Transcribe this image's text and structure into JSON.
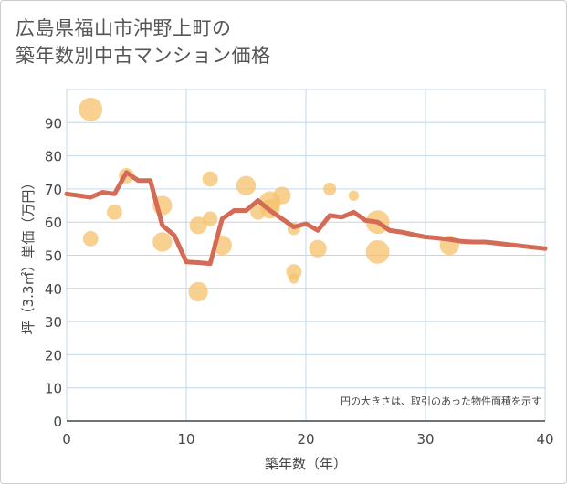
{
  "title_line1": "広島県福山市沖野上町の",
  "title_line2": "築年数別中古マンション価格",
  "chart_data": {
    "type": "scatter",
    "title": "広島県福山市沖野上町の築年数別中古マンション価格",
    "xlabel": "築年数（年）",
    "ylabel": "坪（3.3㎡）単価（万円）",
    "xlim": [
      0,
      40
    ],
    "ylim": [
      0,
      100
    ],
    "x_ticks": [
      0,
      10,
      20,
      30,
      40
    ],
    "y_ticks": [
      0,
      10,
      20,
      30,
      40,
      50,
      60,
      70,
      80,
      90
    ],
    "grid": true,
    "note": "円の大きさは、取引のあった物件面積を示す",
    "bubbles": [
      {
        "x": 2,
        "y": 94,
        "size": 3
      },
      {
        "x": 2,
        "y": 55,
        "size": 1.2
      },
      {
        "x": 4,
        "y": 63,
        "size": 1.2
      },
      {
        "x": 5,
        "y": 74,
        "size": 1.2
      },
      {
        "x": 8,
        "y": 65,
        "size": 2
      },
      {
        "x": 8,
        "y": 54,
        "size": 2
      },
      {
        "x": 11,
        "y": 59,
        "size": 1.6
      },
      {
        "x": 11,
        "y": 39,
        "size": 2
      },
      {
        "x": 12,
        "y": 73,
        "size": 1.2
      },
      {
        "x": 12,
        "y": 61,
        "size": 1.1
      },
      {
        "x": 13,
        "y": 53,
        "size": 2
      },
      {
        "x": 15,
        "y": 71,
        "size": 2
      },
      {
        "x": 16,
        "y": 63,
        "size": 1.2
      },
      {
        "x": 17,
        "y": 66,
        "size": 2.5
      },
      {
        "x": 17,
        "y": 64,
        "size": 2
      },
      {
        "x": 18,
        "y": 68,
        "size": 1.6
      },
      {
        "x": 19,
        "y": 58,
        "size": 0.8
      },
      {
        "x": 19,
        "y": 45,
        "size": 1.2
      },
      {
        "x": 19,
        "y": 43,
        "size": 0.5
      },
      {
        "x": 21,
        "y": 52,
        "size": 1.6
      },
      {
        "x": 22,
        "y": 70,
        "size": 0.8
      },
      {
        "x": 24,
        "y": 68,
        "size": 0.5
      },
      {
        "x": 26,
        "y": 60,
        "size": 3
      },
      {
        "x": 26,
        "y": 51,
        "size": 3
      },
      {
        "x": 32,
        "y": 53,
        "size": 2
      }
    ],
    "trend_line": {
      "x": [
        0,
        2,
        3,
        4,
        5,
        6,
        7,
        8,
        9,
        10,
        11,
        12,
        13,
        14,
        15,
        16,
        17,
        18,
        19,
        20,
        21,
        22,
        23,
        24,
        25,
        26,
        27,
        28,
        29,
        30,
        31,
        32,
        33,
        34,
        35,
        36,
        37,
        38,
        39,
        40
      ],
      "y": [
        68.5,
        67.5,
        69,
        68.5,
        75,
        72.5,
        72.5,
        59,
        56,
        48,
        47.8,
        47.5,
        61,
        63.5,
        63.5,
        66.5,
        63.5,
        61,
        58.5,
        59.5,
        57.5,
        62,
        61.5,
        63,
        60.5,
        60,
        57.5,
        57,
        56.2,
        55.5,
        55.2,
        54.8,
        54.2,
        54,
        54,
        53.6,
        53.2,
        52.8,
        52.4,
        52
      ]
    },
    "colors": {
      "bubble": "#f5c26b",
      "line": "#d46b56",
      "grid": "#c4d6e6",
      "axis": "#444444"
    }
  }
}
